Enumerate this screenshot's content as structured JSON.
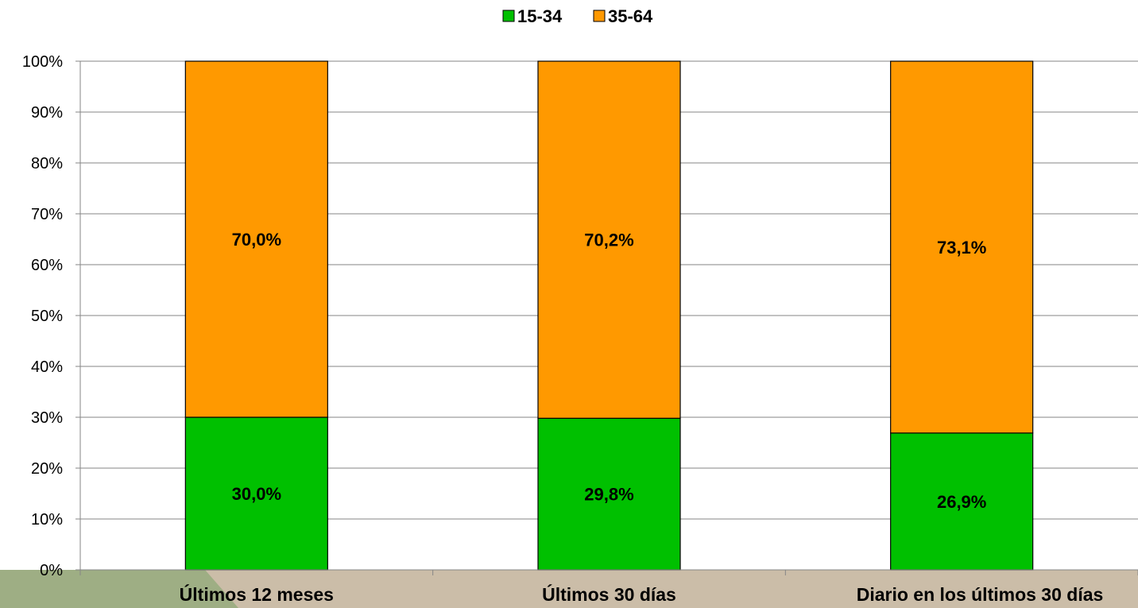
{
  "chart_data": {
    "type": "bar",
    "stacked": true,
    "categories": [
      "Últimos 12 meses",
      "Últimos 30 días",
      "Diario en los últimos 30 días"
    ],
    "series": [
      {
        "name": "15-34",
        "values": [
          30.0,
          29.8,
          26.9
        ],
        "labels": [
          "30,0%",
          "29,8%",
          "26,9%"
        ],
        "color": "#00C000"
      },
      {
        "name": "35-64",
        "values": [
          70.0,
          70.2,
          73.1
        ],
        "labels": [
          "70,0%",
          "70,2%",
          "73,1%"
        ],
        "color": "#FF9900"
      }
    ],
    "ylim": [
      0,
      100
    ],
    "yticks": [
      "0%",
      "10%",
      "20%",
      "30%",
      "40%",
      "50%",
      "60%",
      "70%",
      "80%",
      "90%",
      "100%"
    ],
    "grid": true,
    "legend_position": "top-center"
  }
}
